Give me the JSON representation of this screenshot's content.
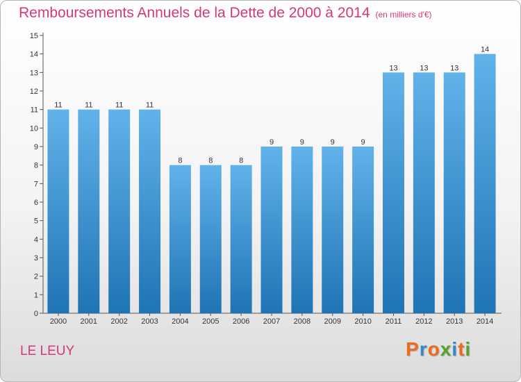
{
  "title": "Remboursements Annuels de la Dette de 2000 à 2014",
  "unit_label": "(en milliers d'€)",
  "place": "LE LEUY",
  "logo": {
    "text": "Proxiti",
    "colors": [
      "#ec6b1e",
      "#3a87c8",
      "#ec6b1e",
      "#5aa02c",
      "#3a87c8",
      "#ec6b1e",
      "#5aa02c"
    ]
  },
  "colors": {
    "title": "#d6377a",
    "bar_light": "#62b2ea",
    "bar_dark": "#1f74b4"
  },
  "chart_data": {
    "type": "bar",
    "categories": [
      "2000",
      "2001",
      "2002",
      "2003",
      "2004",
      "2005",
      "2006",
      "2007",
      "2008",
      "2009",
      "2010",
      "2011",
      "2012",
      "2013",
      "2014"
    ],
    "values": [
      11,
      11,
      11,
      11,
      8,
      8,
      8,
      9,
      9,
      9,
      9,
      13,
      13,
      13,
      14
    ],
    "value_labels": [
      "11",
      "11",
      "11",
      "11",
      "8",
      "8",
      "8",
      "9",
      "9",
      "9",
      "9",
      "13",
      "13",
      "13",
      "14"
    ],
    "yticks": [
      "0",
      "1",
      "2",
      "3",
      "4",
      "5",
      "6",
      "7",
      "8",
      "9",
      "10",
      "11",
      "12",
      "13",
      "14",
      "15"
    ],
    "ylim": [
      0,
      15
    ],
    "grid": false
  }
}
